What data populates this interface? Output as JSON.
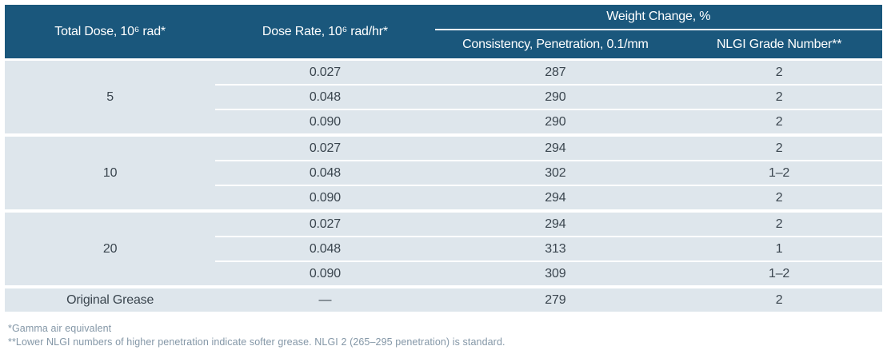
{
  "table": {
    "columns": {
      "total_dose": "Total Dose, 10⁶ rad*",
      "dose_rate": "Dose Rate, 10⁶ rad/hr*",
      "weight_change_group": "Weight Change, %",
      "consistency": "Consistency, Penetration, 0.1/mm",
      "nlgi": "NLGI Grade Number**"
    },
    "groups": [
      {
        "dose": "5",
        "rows": [
          {
            "dose_rate": "0.027",
            "penetration": "287",
            "nlgi": "2"
          },
          {
            "dose_rate": "0.048",
            "penetration": "290",
            "nlgi": "2"
          },
          {
            "dose_rate": "0.090",
            "penetration": "290",
            "nlgi": "2"
          }
        ]
      },
      {
        "dose": "10",
        "rows": [
          {
            "dose_rate": "0.027",
            "penetration": "294",
            "nlgi": "2"
          },
          {
            "dose_rate": "0.048",
            "penetration": "302",
            "nlgi": "1–2"
          },
          {
            "dose_rate": "0.090",
            "penetration": "294",
            "nlgi": "2"
          }
        ]
      },
      {
        "dose": "20",
        "rows": [
          {
            "dose_rate": "0.027",
            "penetration": "294",
            "nlgi": "2"
          },
          {
            "dose_rate": "0.048",
            "penetration": "313",
            "nlgi": "1"
          },
          {
            "dose_rate": "0.090",
            "penetration": "309",
            "nlgi": "1–2"
          }
        ]
      }
    ],
    "final_row": {
      "label": "Original Grease",
      "dose_rate": "—",
      "penetration": "279",
      "nlgi": "2"
    }
  },
  "footnotes": {
    "gamma": "*Gamma air equivalent",
    "nlgi": "**Lower NLGI numbers of higher penetration indicate softer grease. NLGI 2 (265–295 penetration) is standard."
  },
  "colors": {
    "header_bg": "#1a577c",
    "header_text": "#ffffff",
    "row_bg": "#dee6ec",
    "cell_text": "#3a454e",
    "footnote_text": "#8497a7",
    "page_bg": "#ffffff"
  }
}
